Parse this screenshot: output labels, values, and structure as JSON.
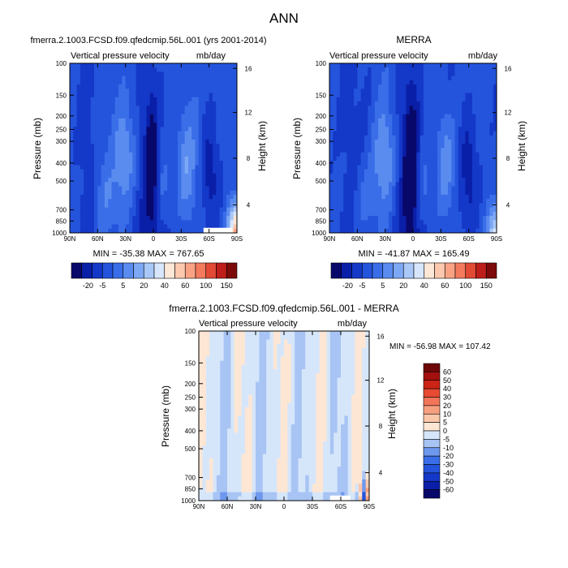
{
  "page": {
    "title": "ANN"
  },
  "palette": {
    "full": [
      "#08086b",
      "#0a1fa8",
      "#1438c8",
      "#2454dc",
      "#3a6ee8",
      "#5a8cf0",
      "#7da8f4",
      "#a9c8f8",
      "#d7e6fb",
      "#fde7d6",
      "#fcc9ae",
      "#f9a384",
      "#f47a5d",
      "#e24a35",
      "#bd1e1a",
      "#7d0a0a"
    ],
    "diff": [
      "#08086b",
      "#0a1fa8",
      "#1438c8",
      "#2454dc",
      "#3a6ee8",
      "#6e98ee",
      "#a8c4f4",
      "#d6e6fa",
      "#fde6d4",
      "#fbc7aa",
      "#f7a07f",
      "#f2755a",
      "#e84a32",
      "#cc2417",
      "#a3100e",
      "#6e0707"
    ]
  },
  "chart_data": [
    {
      "type": "heatmap",
      "title": "fmerra.2.1003.FCSD.f09.qfedcmip.56L.001 (yrs 2001-2014)",
      "field_label": "Vertical pressure velocity",
      "units": "mb/day",
      "ylabel": "Pressure (mb)",
      "ylabel_right": "Height (km)",
      "x_ticks": [
        "90N",
        "60N",
        "30N",
        "0",
        "30S",
        "60S",
        "90S"
      ],
      "y_ticks": [
        100,
        150,
        200,
        250,
        300,
        400,
        500,
        700,
        850,
        1000
      ],
      "y_ticks_right": [
        16,
        12,
        8,
        4
      ],
      "min_max_text": "MIN = -35.38   MAX = 767.65",
      "colorbar_labels": [
        "-20",
        "-5",
        "5",
        "20",
        "40",
        "60",
        "100",
        "150"
      ]
    },
    {
      "type": "heatmap",
      "title": "MERRA",
      "field_label": "Vertical pressure velocity",
      "units": "mb/day",
      "ylabel": "Pressure (mb)",
      "ylabel_right": "Height (km)",
      "x_ticks": [
        "90N",
        "60N",
        "30N",
        "0",
        "30S",
        "60S",
        "90S"
      ],
      "y_ticks": [
        100,
        150,
        200,
        250,
        300,
        400,
        500,
        700,
        850,
        1000
      ],
      "y_ticks_right": [
        16,
        12,
        8,
        4
      ],
      "min_max_text": "MIN = -41.87   MAX = 165.49",
      "colorbar_labels": [
        "-20",
        "-5",
        "5",
        "20",
        "40",
        "60",
        "100",
        "150"
      ]
    },
    {
      "type": "heatmap",
      "title": "fmerra.2.1003.FCSD.f09.qfedcmip.56L.001 - MERRA",
      "field_label": "Vertical pressure velocity",
      "units": "mb/day",
      "ylabel": "Pressure (mb)",
      "ylabel_right": "Height (km)",
      "x_ticks": [
        "90N",
        "60N",
        "30N",
        "0",
        "30S",
        "60S",
        "90S"
      ],
      "y_ticks": [
        100,
        150,
        200,
        250,
        300,
        400,
        500,
        700,
        850,
        1000
      ],
      "y_ticks_right": [
        16,
        12,
        8,
        4
      ],
      "min_max_text": "MIN = -56.98   MAX = 107.42",
      "colorbar_labels": [
        "60",
        "50",
        "40",
        "30",
        "20",
        "10",
        "5",
        "0",
        "-5",
        "-10",
        "-20",
        "-30",
        "-40",
        "-50",
        "-60"
      ]
    }
  ]
}
